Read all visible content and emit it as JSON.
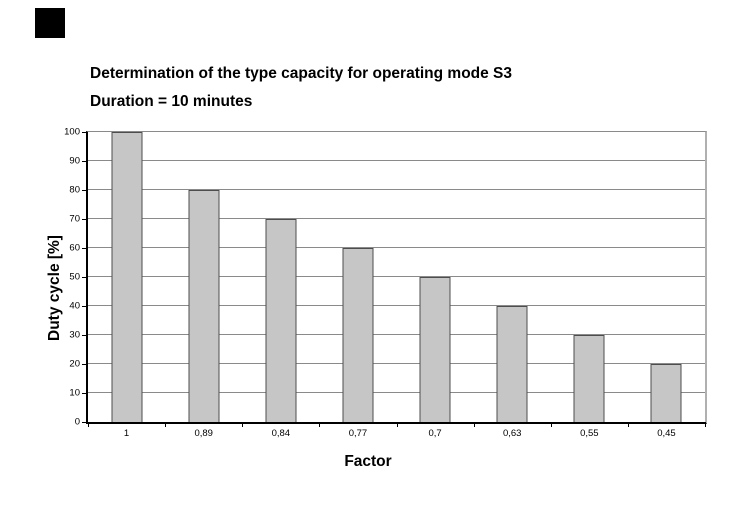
{
  "page": {
    "background_color": "#ffffff"
  },
  "corner_mark": {
    "color": "#000000"
  },
  "chart_data": {
    "type": "bar",
    "title": "Determination of the type capacity for operating mode S3",
    "subtitle": "Duration = 10 minutes",
    "categories": [
      "1",
      "0,89",
      "0,84",
      "0,77",
      "0,7",
      "0,63",
      "0,55",
      "0,45"
    ],
    "values": [
      100,
      80,
      70,
      60,
      50,
      40,
      30,
      20
    ],
    "xlabel": "Factor",
    "ylabel": "Duty cycle [%]",
    "ylim": [
      0,
      100
    ],
    "ytick_step": 10,
    "yticks": [
      0,
      10,
      20,
      30,
      40,
      50,
      60,
      70,
      80,
      90,
      100
    ],
    "grid": "horizontal",
    "legend": "none",
    "colors": {
      "bar_fill": "#c6c6c6",
      "bar_border": "#4d4d4d",
      "gridline": "#8a8a8a",
      "axis": "#000000",
      "plot_right_border": "#b0b0b0",
      "text": "#000000"
    }
  }
}
